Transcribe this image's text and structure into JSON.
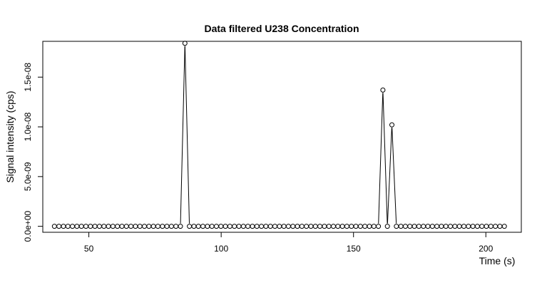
{
  "chart_data": {
    "type": "line",
    "title": "Data filtered U238 Concentration",
    "xlabel": "Time (s)",
    "ylabel": "Signal intensity (cps)",
    "xlim": [
      32.6,
      213.4
    ],
    "ylim": [
      -6e-10,
      1.86e-08
    ],
    "x_ticks": [
      50,
      100,
      150,
      200
    ],
    "x_tick_labels": [
      "50",
      "100",
      "150",
      "200"
    ],
    "y_ticks": [
      0,
      5e-09,
      1e-08,
      1.5e-08
    ],
    "y_tick_labels": [
      "0.0e+00",
      "5.0e-09",
      "1.0e-08",
      "1.5e-08"
    ],
    "grid": false,
    "legend": "none",
    "series": [
      {
        "markers": "open-circle",
        "x_start": 37,
        "x_step": 1.7,
        "count": 101,
        "nonzero": {
          "29": 1.84e-08,
          "73": 1.37e-08,
          "75": 1.02e-08
        }
      }
    ]
  }
}
